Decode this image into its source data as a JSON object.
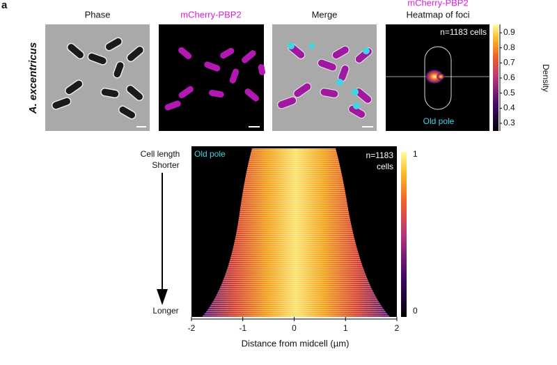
{
  "panel_label": "a",
  "strain": "A. excentricus",
  "images": {
    "titles": [
      "Phase",
      "mCherry-PBP2",
      "Merge",
      "Heatmap of foci"
    ],
    "overflow_title": "mCherry-PBP2"
  },
  "heatmap": {
    "cells_label": "n=1183 cells",
    "pole_label": "Old pole",
    "colorbar": {
      "ticks": [
        0.9,
        0.8,
        0.7,
        0.6,
        0.5,
        0.4,
        0.3
      ],
      "label": "Density"
    }
  },
  "kymograph": {
    "y_top": "Cell length",
    "shorter": "Shorter",
    "longer": "Longer",
    "pole_label": "Old pole",
    "cells_label": [
      "n=1183",
      "cells"
    ],
    "colorbar_ticks": [
      1,
      0
    ],
    "xticks": [
      -2,
      -1,
      0,
      1,
      2
    ],
    "xlabel": "Distance from midcell (µm)"
  }
}
